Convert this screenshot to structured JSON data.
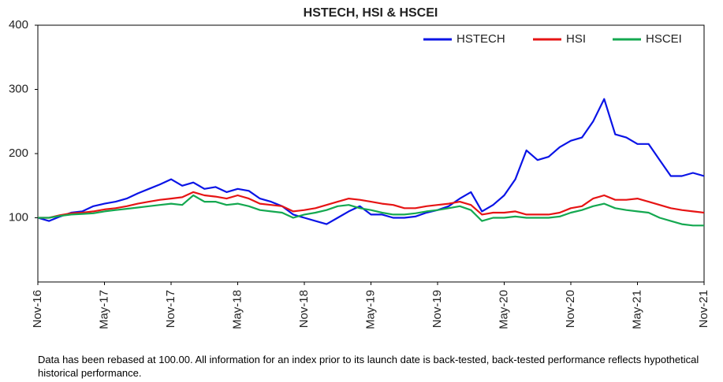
{
  "chart_data": {
    "type": "line",
    "title": "HSTECH, HSI & HSCEI",
    "categories": [
      "Nov-16",
      null,
      null,
      null,
      null,
      null,
      "May-17",
      null,
      null,
      null,
      null,
      null,
      "Nov-17",
      null,
      null,
      null,
      null,
      null,
      "May-18",
      null,
      null,
      null,
      null,
      null,
      "Nov-18",
      null,
      null,
      null,
      null,
      null,
      "May-19",
      null,
      null,
      null,
      null,
      null,
      "Nov-19",
      null,
      null,
      null,
      null,
      null,
      "May-20",
      null,
      null,
      null,
      null,
      null,
      "Nov-20",
      null,
      null,
      null,
      null,
      null,
      "May-21",
      null,
      null,
      null,
      null,
      null,
      "Nov-21"
    ],
    "series": [
      {
        "name": "HSTECH",
        "color": "#0a14e6",
        "values": [
          100,
          95,
          102,
          108,
          110,
          118,
          122,
          125,
          130,
          138,
          145,
          152,
          160,
          150,
          155,
          145,
          148,
          140,
          145,
          142,
          130,
          125,
          118,
          105,
          100,
          95,
          90,
          100,
          110,
          118,
          105,
          105,
          100,
          100,
          102,
          108,
          112,
          118,
          130,
          140,
          110,
          120,
          135,
          160,
          205,
          190,
          195,
          210,
          220,
          225,
          250,
          285,
          230,
          225,
          215,
          215,
          190,
          165,
          165,
          170,
          165
        ]
      },
      {
        "name": "HSI",
        "color": "#e61414",
        "values": [
          100,
          100,
          104,
          107,
          108,
          110,
          113,
          115,
          118,
          122,
          125,
          128,
          130,
          132,
          140,
          135,
          133,
          130,
          135,
          130,
          122,
          120,
          118,
          110,
          112,
          115,
          120,
          125,
          130,
          128,
          125,
          122,
          120,
          115,
          115,
          118,
          120,
          122,
          125,
          120,
          105,
          108,
          108,
          110,
          105,
          105,
          105,
          108,
          115,
          118,
          130,
          135,
          128,
          128,
          130,
          125,
          120,
          115,
          112,
          110,
          108
        ]
      },
      {
        "name": "HSCEI",
        "color": "#14a850",
        "values": [
          100,
          100,
          103,
          105,
          106,
          107,
          110,
          112,
          114,
          116,
          118,
          120,
          122,
          120,
          135,
          125,
          125,
          120,
          122,
          118,
          112,
          110,
          108,
          100,
          105,
          108,
          112,
          118,
          120,
          115,
          112,
          108,
          105,
          105,
          107,
          110,
          112,
          115,
          118,
          112,
          95,
          100,
          100,
          102,
          100,
          100,
          100,
          102,
          108,
          112,
          118,
          122,
          115,
          112,
          110,
          108,
          100,
          95,
          90,
          88,
          88
        ]
      }
    ],
    "ylim": [
      0,
      400
    ],
    "yticks": [
      100,
      200,
      300,
      400
    ],
    "legend": "top-right",
    "note": "Data has been rebased at 100.00. All information for an index prior to its launch date is back-tested, back-tested performance reflects hypothetical historical performance."
  }
}
